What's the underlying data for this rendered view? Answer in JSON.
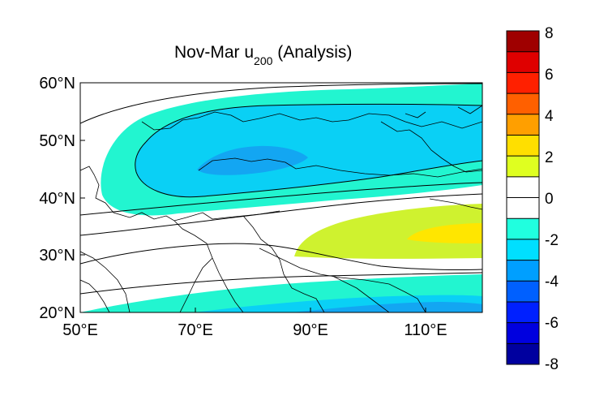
{
  "figure": {
    "title_main": "Nov-Mar u",
    "title_sub": "200",
    "title_rest": " (Analysis)"
  },
  "map": {
    "x_ticks": [
      "50°E",
      "70°E",
      "90°E",
      "110°E"
    ],
    "y_ticks": [
      "60°N",
      "50°N",
      "40°N",
      "30°N",
      "20°N"
    ],
    "lon_range": [
      50,
      120
    ],
    "lat_range": [
      20,
      60
    ]
  },
  "colorbar": {
    "labels": [
      "8",
      "6",
      "4",
      "2",
      "0",
      "-2",
      "-4",
      "-6",
      "-8"
    ],
    "range": [
      -8,
      8
    ],
    "level_step": 1,
    "colormap": "jet",
    "blanked_interval": [
      -1,
      1
    ]
  },
  "colors": {
    "neg_1_2": "#22f5d0",
    "neg_2_3": "#0ad0f5",
    "neg_3_4": "#13a6f2",
    "neg_4_5": "#1372ea",
    "pos_1_2": "#cff22f",
    "pos_2_3": "#ffe600",
    "frame": "#000000"
  }
}
